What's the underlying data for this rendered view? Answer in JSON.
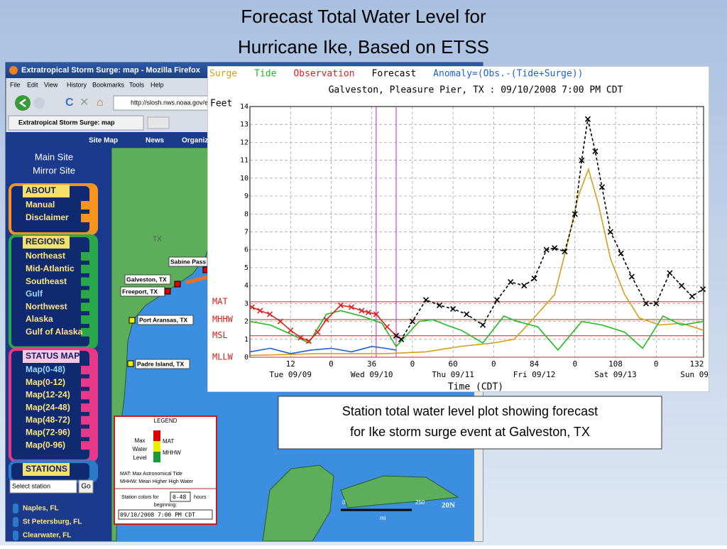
{
  "slide": {
    "title": [
      "Forecast Total Water Level for",
      "Hurricane Ike, Based on ETSS"
    ],
    "caption": [
      "Station total water level plot showing forecast",
      "for Ike storm surge event at Galveston, TX"
    ]
  },
  "browser": {
    "window_title": "Extratropical Storm Surge: map - Mozilla Firefox",
    "menu": [
      "File",
      "Edit",
      "View",
      "History",
      "Bookmarks",
      "Tools",
      "Help"
    ],
    "url": "http://slosh.nws.noaa.gov/e",
    "tab": "Extratropical Storm Surge: map"
  },
  "site": {
    "nav": [
      "Site Map",
      "News",
      "Organiz"
    ],
    "links": [
      "Main Site",
      "Mirror Site"
    ],
    "about": {
      "heading": "ABOUT",
      "items": [
        "Manual",
        "Disclaimer"
      ]
    },
    "regions": {
      "heading": "REGIONS",
      "items": [
        "Northeast",
        "Mid-Atlantic",
        "Southeast",
        "Gulf",
        "Northwest",
        "Alaska",
        "Gulf of Alaska"
      ],
      "selected": 3
    },
    "status_map": {
      "heading": "STATUS MAP",
      "items": [
        "Map(0-48)",
        "Map(0-12)",
        "Map(12-24)",
        "Map(24-48)",
        "Map(48-72)",
        "Map(72-96)",
        "Map(0-96)"
      ],
      "selected": 0
    },
    "stations": {
      "heading": "STATIONS",
      "select": "Select station",
      "button": "Go",
      "items": [
        "Naples, FL",
        "St Petersburg, FL",
        "Clearwater, FL"
      ]
    }
  },
  "map": {
    "state_label": "TX",
    "stations": [
      "Sabine Pass",
      "Galveston, TX",
      "Freeport, TX",
      "Port Aransas, TX",
      "Padre Island, TX"
    ],
    "legend": {
      "title": "LEGEND",
      "level_label": [
        "Max",
        "Water",
        "Level"
      ],
      "keys": [
        "MAT",
        "MHHW"
      ],
      "notes": [
        "MAT:  Max Astronomical Tide",
        "MHHW:  Mean Higher High Water"
      ],
      "colors_text": [
        "Station colors for",
        "hours",
        "beginning:"
      ],
      "hours": "0-48",
      "date": "09/10/2008 7:00 PM CDT"
    },
    "scale": [
      "0",
      "250",
      "mi"
    ],
    "corner_label": "20N"
  },
  "plot": {
    "type": "line",
    "title": "Galveston, Pleasure Pier, TX : 09/10/2008 7:00 PM CDT",
    "y_label": "Feet",
    "x_label": "Time (CDT)",
    "xlim": [
      0,
      134
    ],
    "ylim": [
      0,
      14
    ],
    "yticks": [
      0,
      1,
      2,
      3,
      4,
      5,
      6,
      7,
      8,
      9,
      10,
      11,
      12,
      13,
      14
    ],
    "xticks": [
      12,
      {
        "value": 24,
        "label": "0"
      },
      36,
      {
        "value": 48,
        "label": "0"
      },
      60,
      {
        "value": 72,
        "label": "0"
      },
      84,
      {
        "value": 96,
        "label": "0"
      },
      108,
      {
        "value": 120,
        "label": "0"
      },
      132
    ],
    "day_labels": [
      {
        "value": 12,
        "label": "Tue 09/09"
      },
      {
        "value": 36,
        "label": "Wed 09/10"
      },
      {
        "value": 60,
        "label": "Thu 09/11"
      },
      {
        "value": 84,
        "label": "Fri 09/12"
      },
      {
        "value": 108,
        "label": "Sat 09/13"
      },
      {
        "value": 132,
        "label": "Sun 09/"
      }
    ],
    "grid": true,
    "reference_levels": [
      {
        "label": "MAT",
        "value": 3.1
      },
      {
        "label": "MHHW",
        "value": 2.1
      },
      {
        "label": "MSL",
        "value": 1.2
      },
      {
        "label": "MLLW",
        "value": 0
      }
    ],
    "time_markers": [
      37.3,
      43.2
    ],
    "series": [
      {
        "name": "Surge",
        "color": "#d4a017",
        "x": [
          0,
          20,
          40,
          52,
          62,
          72,
          78,
          83,
          90,
          94,
          97,
          100,
          103,
          106.5,
          110.7,
          115,
          121,
          127.5,
          134
        ],
        "values": [
          0.1,
          0.2,
          0.2,
          0.3,
          0.6,
          0.8,
          1.0,
          2.0,
          3.5,
          6.5,
          9,
          10.5,
          8.5,
          5.5,
          3.5,
          2.2,
          1.8,
          1.9,
          1.5
        ]
      },
      {
        "name": "Tide",
        "color": "#22bb22",
        "x": [
          0,
          6,
          12,
          17.4,
          22.6,
          26.8,
          33,
          39,
          43.2,
          50,
          54,
          58,
          62.5,
          68.8,
          75,
          79,
          85,
          91,
          98,
          104,
          110.7,
          116,
          122,
          127.5,
          134
        ],
        "values": [
          2.0,
          1.8,
          1.3,
          0.8,
          2.4,
          2.6,
          2.3,
          1.9,
          0.6,
          2.0,
          2.1,
          1.8,
          1.5,
          0.8,
          2.3,
          2.0,
          1.7,
          0.4,
          2.0,
          1.8,
          1.4,
          0.5,
          2.3,
          1.8,
          2.0
        ]
      },
      {
        "name": "Observation",
        "color": "#e02020",
        "marker": "x",
        "x": [
          0.6,
          3,
          5.9,
          9,
          12,
          15,
          17.4,
          20,
          22.6,
          26.8,
          30,
          33,
          35,
          37.3,
          40.5,
          43.2
        ],
        "values": [
          2.8,
          2.6,
          2.4,
          2.0,
          1.5,
          1.1,
          0.9,
          1.4,
          2.1,
          2.9,
          2.8,
          2.6,
          2.5,
          2.4,
          1.7,
          1.2
        ]
      },
      {
        "name": "Forecast",
        "color": "#000000",
        "marker": "x",
        "dash": true,
        "x": [
          43.2,
          44.7,
          48,
          52,
          56,
          60,
          64,
          68.8,
          73,
          77,
          81,
          84,
          87.6,
          90,
          93,
          96,
          98,
          99.8,
          102,
          104,
          106.5,
          109.6,
          112.8,
          117,
          120,
          124,
          127.5,
          130.6,
          133.8
        ],
        "values": [
          1.2,
          1.0,
          2.0,
          3.2,
          2.9,
          2.7,
          2.4,
          1.8,
          3.2,
          4.2,
          4.0,
          4.4,
          6.0,
          6.1,
          5.9,
          8,
          11,
          13.3,
          11.5,
          9.5,
          7,
          5.8,
          4.5,
          3.0,
          3.0,
          4.7,
          4.0,
          3.4,
          3.8
        ]
      },
      {
        "name": "Anomaly=(Obs.-(Tide+Surge))",
        "color": "#2060d0",
        "x": [
          0,
          6,
          12,
          18,
          24,
          30,
          36,
          40,
          43.2
        ],
        "values": [
          0.3,
          0.5,
          0.2,
          0.4,
          0.5,
          0.3,
          0.6,
          0.5,
          0.4
        ]
      }
    ]
  }
}
